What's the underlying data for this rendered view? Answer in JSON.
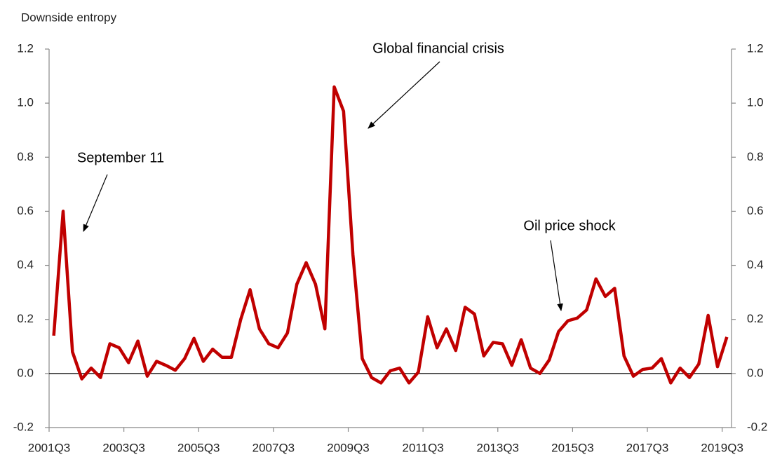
{
  "chart_data": {
    "type": "line",
    "y_axis_label": "Downside entropy",
    "categories": [
      "2001Q3",
      null,
      null,
      null,
      null,
      null,
      null,
      null,
      "2003Q3",
      null,
      null,
      null,
      null,
      null,
      null,
      null,
      "2005Q3",
      null,
      null,
      null,
      null,
      null,
      null,
      null,
      "2007Q3",
      null,
      null,
      null,
      null,
      null,
      null,
      null,
      "2009Q3",
      null,
      null,
      null,
      null,
      null,
      null,
      null,
      "2011Q3",
      null,
      null,
      null,
      null,
      null,
      null,
      null,
      "2013Q3",
      null,
      null,
      null,
      null,
      null,
      null,
      null,
      "2015Q3",
      null,
      null,
      null,
      null,
      null,
      null,
      null,
      "2017Q3",
      null,
      null,
      null,
      null,
      null,
      null,
      null,
      "2019Q3"
    ],
    "values": [
      0.14,
      0.6,
      0.08,
      -0.02,
      0.02,
      -0.015,
      0.11,
      0.095,
      0.04,
      0.12,
      -0.01,
      0.045,
      0.03,
      0.012,
      0.055,
      0.13,
      0.045,
      0.09,
      0.06,
      0.06,
      0.2,
      0.31,
      0.165,
      0.11,
      0.095,
      0.15,
      0.33,
      0.41,
      0.33,
      0.165,
      1.06,
      0.97,
      0.44,
      0.055,
      -0.015,
      -0.035,
      0.01,
      0.02,
      -0.035,
      0.005,
      0.21,
      0.095,
      0.165,
      0.085,
      0.245,
      0.22,
      0.065,
      0.115,
      0.11,
      0.03,
      0.125,
      0.02,
      0.0,
      0.05,
      0.155,
      0.195,
      0.205,
      0.235,
      0.35,
      0.285,
      0.315,
      0.065,
      -0.01,
      0.015,
      0.02,
      0.055,
      -0.035,
      0.02,
      -0.015,
      0.035,
      0.215,
      0.025,
      0.135
    ],
    "color": "#c00000",
    "ylim": [
      -0.2,
      1.2
    ],
    "yticks": [
      -0.2,
      {
        "value": 0,
        "label": "0.0"
      },
      0.2,
      0.4,
      0.6,
      0.8,
      {
        "value": 1,
        "label": "1.0"
      },
      1.2
    ],
    "y2lim": [
      -0.2,
      1.2
    ],
    "y2ticks": [
      -0.2,
      {
        "value": 0,
        "label": "0.0"
      },
      0.2,
      0.4,
      0.6,
      0.8,
      {
        "value": 1,
        "label": "1.0"
      },
      1.2
    ],
    "zero_line": true,
    "annotations": [
      {
        "text": "September 11"
      },
      {
        "text": "Global financial crisis"
      },
      {
        "text": "Oil price shock"
      }
    ]
  }
}
